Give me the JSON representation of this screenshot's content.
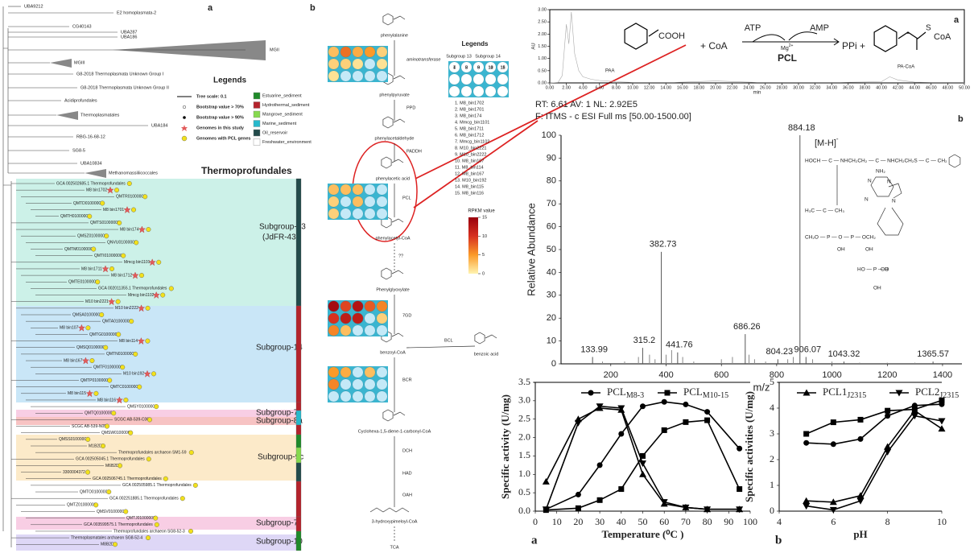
{
  "tree": {
    "panel_label": "a",
    "title": "Thermoprofundales",
    "clades": [
      "UBA9212",
      "E2 homoplasmata-2",
      "CG40143",
      "UBA287",
      "UBA186",
      "MGII",
      "MGIII",
      "G8-2018 Thermoplasmata Unknown Group I",
      "G8-2018 Thermoplasmata Unknown Group II",
      "Acidiprofundales",
      "Thermoplasmatales",
      "UBA184",
      "RBG-16-68-12",
      "SG8-5",
      "UBA10834",
      "Methanomassiliicoccales"
    ],
    "leaves": [
      {
        "label": "GCA 002502685.1 Thermoprofundales",
        "star": false
      },
      {
        "label": "M8 bin1702",
        "star": true
      },
      {
        "label": "QMTR01000000",
        "star": false
      },
      {
        "label": "QMTD01000000",
        "star": false
      },
      {
        "label": "M8 bin1701",
        "star": true
      },
      {
        "label": "QMTH01000000",
        "star": false
      },
      {
        "label": "QMTS01000000",
        "star": false
      },
      {
        "label": "M8 bin174",
        "star": true
      },
      {
        "label": "QMSZ01000000",
        "star": false
      },
      {
        "label": "QNVU01000000",
        "star": false
      },
      {
        "label": "QMTM01000000",
        "star": false
      },
      {
        "label": "QMTI01000000",
        "star": false
      },
      {
        "label": "Mmcg bin1101",
        "star": true
      },
      {
        "label": "M8 bin1711",
        "star": true
      },
      {
        "label": "M8 bin1712",
        "star": true
      },
      {
        "label": "QMTE01000000",
        "star": false
      },
      {
        "label": "GCA 002011355.1 Thermoprofundales",
        "star": false
      },
      {
        "label": "Mmcg bin1102",
        "star": true
      },
      {
        "label": "M10 bin2221",
        "star": true
      },
      {
        "label": "M10 bin2222",
        "star": true
      },
      {
        "label": "QMSA01000000",
        "star": false
      },
      {
        "label": "QMTA01000000",
        "star": false
      },
      {
        "label": "M8 bin107",
        "star": true
      },
      {
        "label": "QMTG01000000",
        "star": false
      },
      {
        "label": "M8 bin114",
        "star": true
      },
      {
        "label": "QMSQ01000000",
        "star": false
      },
      {
        "label": "QMTN01000000",
        "star": false
      },
      {
        "label": "M8 bin167",
        "star": true
      },
      {
        "label": "QMTF01000000",
        "star": false
      },
      {
        "label": "M10 bin192",
        "star": true
      },
      {
        "label": "QMTP01000000",
        "star": false
      },
      {
        "label": "QMTC01000000",
        "star": false
      },
      {
        "label": "M8 bin115",
        "star": true
      },
      {
        "label": "M8 bin116",
        "star": true
      },
      {
        "label": "QMSY01000000",
        "star": false
      },
      {
        "label": "QMTQ01000000",
        "star": false
      },
      {
        "label": "SCGC AB-539-C06",
        "star": false
      },
      {
        "label": "SCGC AB-539-N05",
        "star": false
      },
      {
        "label": "QMSW01000000",
        "star": false
      },
      {
        "label": "QMSS01000000",
        "star": false
      },
      {
        "label": "M1B2D",
        "star": false
      },
      {
        "label": "Thermoprofundales archaeon SM1-59",
        "star": false
      },
      {
        "label": "GCA 002505045.1 Thermoprofundales",
        "star": false
      },
      {
        "label": "M6B2D",
        "star": false
      },
      {
        "label": "3300004372",
        "star": false
      },
      {
        "label": "GCA 002506745.1 Thermoprofundales",
        "star": false
      },
      {
        "label": "GCA 002505985.1 Thermoprofundales",
        "star": false
      },
      {
        "label": "QMTO01000000",
        "star": false
      },
      {
        "label": "GCA 002251885.1 Thermoprofundales",
        "star": false
      },
      {
        "label": "QMTZ01000000",
        "star": false
      },
      {
        "label": "QMSV01000000",
        "star": false
      },
      {
        "label": "QMTJ01000000",
        "star": false
      },
      {
        "label": "GCA 003599575.1 Thermoprofundales",
        "star": false
      },
      {
        "label": "Thermoprofundales archaeon SG8-52-3",
        "star": false
      },
      {
        "label": "Thermoplasmatales archaeon SG8-52-4",
        "star": false
      },
      {
        "label": "M8B2D",
        "star": false
      }
    ],
    "subgroups": [
      {
        "label": "Subgroup-13",
        "sublabel": "(JdFR-43)",
        "color": "#c3eee4"
      },
      {
        "label": "Subgroup-14",
        "color": "#bfe2f6"
      },
      {
        "label": "Subgroup-7",
        "color": "#f7c6df"
      },
      {
        "label": "Subgroup-8a",
        "color": "#f6b8b8"
      },
      {
        "label": "Subgroup-9c",
        "color": "#fbe6c0"
      },
      {
        "label": "Subgroup-7",
        "color": "#f7c6df"
      },
      {
        "label": "Subgroup-10",
        "color": "#d8d0f4"
      }
    ],
    "legend": {
      "title": "Legends",
      "items": [
        "Tree scale: 0.1",
        "Bootstrap value > 70%",
        "Bootstrap value > 90%",
        "Genomes in this study",
        "Genomes with PCL genes"
      ],
      "environments": [
        {
          "label": "Estuarine_sediment",
          "color": "#1f8a2a"
        },
        {
          "label": "Hydrothermal_sediment",
          "color": "#b4232c"
        },
        {
          "label": "Mangrove_sediment",
          "color": "#86d94e"
        },
        {
          "label": "Marine_sediment",
          "color": "#27b9cc"
        },
        {
          "label": "Oil_reservoir",
          "color": "#234b4b"
        },
        {
          "label": "Freshwater_environment",
          "color": "#ffffff"
        }
      ]
    }
  },
  "pathway": {
    "panel_label": "b",
    "compounds": [
      "phenylalanine",
      "phenylpyruvate",
      "phenylacetaldehyde",
      "phenylacetic acid",
      "phenylacetyl-CoA",
      "Phenylglyoxylate",
      "benzoyl-CoA",
      "benzoic acid",
      "Cyclohexa-1,5-diene-1-carbonyl-CoA",
      "3-hydroxypimeloyl-CoA",
      "TCA"
    ],
    "enzymes": [
      {
        "label": "aminotransferase",
        "color": "#3a3adf"
      },
      {
        "label": "PPD",
        "color": "#e23b2b"
      },
      {
        "label": "PADDH",
        "color": "#3a3adf"
      },
      {
        "label": "PCL",
        "color": "#3a3adf"
      },
      {
        "label": "??",
        "color": "#e23b2b"
      },
      {
        "label": "7GD",
        "color": "#3a3adf"
      },
      {
        "label": "BCL",
        "color": "#3a3adf"
      },
      {
        "label": "BCR",
        "color": "#3a3adf"
      },
      {
        "label": "DCH",
        "color": "#3a3adf"
      },
      {
        "label": "HAD",
        "color": "#3a3adf"
      },
      {
        "label": "OAH",
        "color": "#3a3adf"
      }
    ],
    "legend": {
      "title": "Legends",
      "subgroups": [
        "Subgroup 13",
        "Subgroup 14"
      ],
      "cell_numbers": [
        1,
        2,
        3,
        4,
        5,
        6,
        7,
        8,
        9,
        10,
        11,
        12,
        13,
        14,
        15
      ],
      "genomes": [
        "1.    M8_bin1702",
        "2.    M8_bin1701",
        "3.    M8_bin174",
        "4.    Mmcg_bin1101",
        "5.    M8_bin1711",
        "6.    M8_bin1712",
        "7.    Mmcg_bin1102",
        "8.    M10_bin2221",
        "9.    M10_bin2222",
        "10.   M8_bin107",
        "11.   M8_bin114",
        "12.   M8_bin167",
        "13.   M10_bin192",
        "14.   M8_bin115",
        "15.   M8_bin116"
      ]
    },
    "heatmaps": [
      [
        3,
        7,
        4,
        2,
        2,
        1,
        1,
        null,
        null,
        5,
        2,
        null,
        1,
        null,
        null
      ],
      [
        3,
        3,
        3,
        2,
        null,
        3,
        2,
        null,
        null,
        null,
        null,
        null,
        null,
        null,
        null
      ],
      [
        14,
        9,
        13,
        10,
        12,
        12,
        6,
        3,
        null,
        8,
        6,
        null,
        2,
        null,
        null
      ],
      [
        5,
        4,
        null,
        6,
        null,
        null,
        null,
        null,
        null,
        3,
        null,
        null,
        null,
        null,
        null
      ]
    ],
    "colorbar": {
      "title": "RPKM value",
      "lim": [
        0,
        15
      ],
      "ticks": [
        0,
        5,
        10,
        15
      ],
      "colors": [
        "#fff4b0",
        "#fb9a29",
        "#d7301f",
        "#99000d"
      ],
      "empty_color": "#c4e9f7"
    }
  },
  "reaction": {
    "panel_label": "a",
    "acid": "COOH",
    "coa": "+ CoA",
    "atp": "ATP",
    "amp": "AMP",
    "cofactor": "Mg",
    "cofactor_charge": "2+",
    "enzyme": "PCL",
    "ppi": "PPi +",
    "sulfur": "S",
    "product_coa": "CoA"
  },
  "structure": {
    "ion": "[M-H]",
    "ion_charge": "-",
    "labels": [
      "HOCH — C — NHCH₂CH₂ — C — NHCH₂CH₂S — C — CH₂",
      "NH₂",
      "N",
      "N",
      "N",
      "N",
      "H₃C — C — CH₃",
      "CH₂O — P — O — P — OCH₂",
      "OH",
      "OH",
      "HO — P — O",
      "OH",
      "OH"
    ]
  },
  "chart_data": [
    {
      "type": "line",
      "x_label": "min",
      "y_label": "AU",
      "annotations": [
        "PAA",
        "PA-CoA"
      ],
      "x": [
        0,
        1,
        1.5,
        2,
        2.3,
        2.6,
        3,
        3.5,
        4,
        5,
        6,
        8,
        10,
        15,
        20,
        25,
        30,
        35,
        40,
        41,
        42,
        44,
        46,
        50
      ],
      "series": [
        {
          "color": "#a9a9a9",
          "values": [
            0,
            0.02,
            0.3,
            2.4,
            1.6,
            2.9,
            1.2,
            0.5,
            0.25,
            0.15,
            0.1,
            0.05,
            0.02,
            0.02,
            0.08,
            0.02,
            0.02,
            0.02,
            0.05,
            0.25,
            0.12,
            0.03,
            0.02,
            0.02
          ]
        }
      ],
      "xlim": [
        0,
        50
      ],
      "ylim": [
        0,
        3
      ],
      "xticks": [
        {
          "value": 0,
          "label": "0.00"
        },
        {
          "value": 2,
          "label": "2.00"
        },
        {
          "value": 4,
          "label": "4.00"
        },
        {
          "value": 6,
          "label": "6.00"
        },
        {
          "value": 8,
          "label": "8.00"
        },
        {
          "value": 10,
          "label": "10.00"
        },
        {
          "value": 12,
          "label": "12.00"
        },
        {
          "value": 14,
          "label": "14.00"
        },
        {
          "value": 16,
          "label": "16.00"
        },
        {
          "value": 18,
          "label": "18.00"
        },
        {
          "value": 20,
          "label": "20.00"
        },
        {
          "value": 22,
          "label": "22.00"
        },
        {
          "value": 24,
          "label": "24.00"
        },
        {
          "value": 26,
          "label": "26.00"
        },
        {
          "value": 28,
          "label": "28.00"
        },
        {
          "value": 30,
          "label": "30.00"
        },
        {
          "value": 32,
          "label": "32.00"
        },
        {
          "value": 34,
          "label": "34.00"
        },
        {
          "value": 36,
          "label": "36.00"
        },
        {
          "value": 38,
          "label": "38.00"
        },
        {
          "value": 40,
          "label": "40.00"
        },
        {
          "value": 42,
          "label": "42.00"
        },
        {
          "value": 44,
          "label": "44.00"
        },
        {
          "value": 46,
          "label": "46.00"
        },
        {
          "value": 48,
          "label": "48.00"
        },
        {
          "value": 50,
          "label": "50.00"
        }
      ],
      "yticks": [
        {
          "value": 0,
          "label": "0.00"
        },
        {
          "value": 0.5,
          "label": "0.50"
        },
        {
          "value": 1,
          "label": "1.00"
        },
        {
          "value": 1.5,
          "label": "1.50"
        },
        {
          "value": 2,
          "label": "2.00"
        },
        {
          "value": 2.5,
          "label": "2.50"
        },
        {
          "value": 3,
          "label": "3.00"
        }
      ]
    },
    {
      "type": "bar",
      "title": "RT: 6.61  AV: 1  NL: 2.92E5",
      "subtitle": "F: ITMS - c ESI Full ms [50.00-1500.00]",
      "panel_label": "b",
      "x_label": "m/z",
      "y_label": "Relative Abundance",
      "series": [
        {
          "color": "#555555",
          "x": [
            133.99,
            315.2,
            382.73,
            441.76,
            686.26,
            804.23,
            884.18,
            906.07,
            1043.32,
            1365.57
          ],
          "values": [
            3,
            7,
            49,
            5,
            13,
            2,
            100,
            3,
            1,
            1
          ]
        },
        {
          "color": "#888888",
          "x": [
            170,
            250,
            300,
            340,
            360,
            400,
            420,
            460,
            500,
            600,
            640,
            700,
            720,
            760,
            840,
            860,
            930,
            1000,
            1100,
            1200,
            1300
          ],
          "values": [
            1,
            1,
            3,
            4,
            2,
            4,
            6,
            3,
            1,
            2,
            3,
            4,
            2,
            1,
            2,
            3,
            2,
            1,
            0.5,
            0.5,
            0.5
          ]
        }
      ],
      "xlim": [
        20,
        1470
      ],
      "ylim": [
        0,
        100
      ],
      "xticks": [
        200,
        400,
        600,
        800,
        1000,
        1200,
        1400
      ],
      "yticks": [
        0,
        10,
        20,
        30,
        40,
        50,
        60,
        70,
        80,
        90,
        100
      ]
    },
    {
      "type": "line",
      "panel_label": "a",
      "x_label": "Temperature (⁰C )",
      "y_label": "Specific activity (U/mg)",
      "x": [
        5,
        20,
        30,
        40,
        50,
        60,
        70,
        80,
        95
      ],
      "series": [
        {
          "name": "PCL",
          "name_sub": "M8-3",
          "marker": "circle",
          "color": "#000000",
          "values": [
            0.05,
            0.45,
            1.25,
            2.1,
            2.85,
            2.97,
            2.9,
            2.7,
            1.7
          ]
        },
        {
          "name": "PCL",
          "name_sub": "M10-15",
          "marker": "square",
          "color": "#000000",
          "values": [
            0.03,
            0.08,
            0.3,
            0.6,
            1.5,
            2.2,
            2.42,
            2.47,
            0.6
          ]
        },
        {
          "marker": "triangle-up",
          "color": "#000000",
          "values": [
            0.8,
            2.5,
            2.8,
            2.75,
            1.0,
            0.2,
            0.1,
            0.05,
            0.05
          ]
        },
        {
          "marker": "triangle-down",
          "color": "#000000",
          "values": [
            0.05,
            2.4,
            2.85,
            2.8,
            1.3,
            0.25,
            0.1,
            0.05,
            0.05
          ]
        }
      ],
      "xlim": [
        0,
        100
      ],
      "ylim": [
        0,
        3.5
      ],
      "xticks": [
        0,
        10,
        20,
        30,
        40,
        50,
        60,
        70,
        80,
        90,
        100
      ],
      "yticks": [
        {
          "value": 0,
          "label": "0.0"
        },
        {
          "value": 0.5,
          "label": "0.5"
        },
        {
          "value": 1,
          "label": "1.0"
        },
        {
          "value": 1.5,
          "label": "1.5"
        },
        {
          "value": 2,
          "label": "2.0"
        },
        {
          "value": 2.5,
          "label": "2.5"
        },
        {
          "value": 3,
          "label": "3.0"
        },
        {
          "value": 3.5,
          "label": "3.5"
        }
      ]
    },
    {
      "type": "line",
      "panel_label": "b",
      "x_label": "pH",
      "y_label": "Specific activities (U/mg)",
      "x": [
        5,
        6,
        7,
        8,
        9,
        10
      ],
      "series": [
        {
          "name": "PCL1",
          "name_sub": "J2315",
          "marker": "triangle-up",
          "color": "#000000",
          "values": [
            0.4,
            0.35,
            0.6,
            2.5,
            3.9,
            3.2
          ]
        },
        {
          "name": "PCL2",
          "name_sub": "J2315",
          "marker": "triangle-down",
          "color": "#000000",
          "values": [
            0.2,
            0.05,
            0.4,
            2.3,
            3.7,
            3.5
          ]
        },
        {
          "marker": "square",
          "color": "#000000",
          "values": [
            3.0,
            3.45,
            3.55,
            3.9,
            3.95,
            4.3
          ]
        },
        {
          "marker": "circle",
          "color": "#000000",
          "values": [
            2.65,
            2.6,
            2.8,
            3.7,
            4.1,
            4.15
          ]
        }
      ],
      "xlim": [
        4,
        10
      ],
      "ylim": [
        0,
        5
      ],
      "xticks": [
        4,
        6,
        8,
        10
      ],
      "yticks": [
        0,
        1,
        2,
        3,
        4,
        5
      ]
    }
  ]
}
